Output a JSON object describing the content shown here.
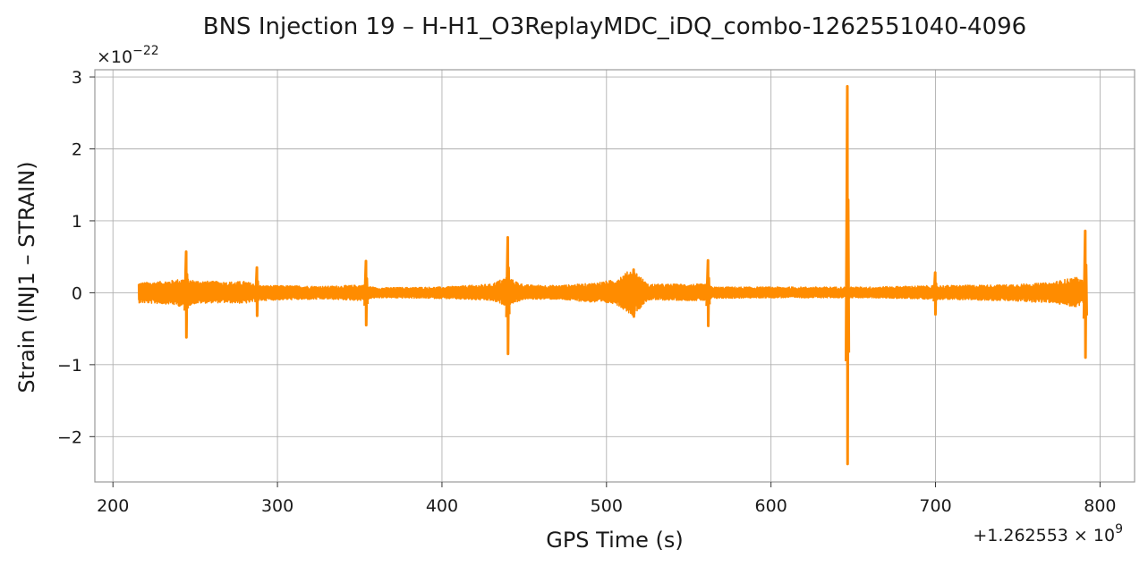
{
  "chart_data": {
    "type": "line",
    "title": "BNS Injection 19 – H-H1_O3ReplayMDC_iDQ_combo-1262551040-4096",
    "xlabel": "GPS Time (s)",
    "ylabel": "Strain (INJ1 – STRAIN)",
    "y_scale_label": {
      "base": "×10",
      "exp": "−22"
    },
    "x_offset_label": {
      "base": "+1.262553 × 10",
      "exp": "9"
    },
    "x_offset_value": 1262553000,
    "y_multiplier": 1e-22,
    "xlim": [
      189,
      821
    ],
    "ylim": [
      -2.63,
      3.1
    ],
    "x_ticks": [
      {
        "value": 200,
        "label": "200"
      },
      {
        "value": 300,
        "label": "300"
      },
      {
        "value": 400,
        "label": "400"
      },
      {
        "value": 500,
        "label": "500"
      },
      {
        "value": 600,
        "label": "600"
      },
      {
        "value": 700,
        "label": "700"
      },
      {
        "value": 800,
        "label": "800"
      }
    ],
    "y_ticks": [
      {
        "value": -2,
        "label": "−2"
      },
      {
        "value": -1,
        "label": "−1"
      },
      {
        "value": 0,
        "label": "0"
      },
      {
        "value": 1,
        "label": "1"
      },
      {
        "value": 2,
        "label": "2"
      },
      {
        "value": 3,
        "label": "3"
      }
    ],
    "grid": true,
    "line_color": "#ff8c00",
    "series": [
      {
        "x_range": [
          215.5,
          792
        ],
        "envelope": [
          {
            "x": 215.5,
            "high": 0.14,
            "low": -0.14
          },
          {
            "x": 225,
            "high": 0.15,
            "low": -0.15
          },
          {
            "x": 235,
            "high": 0.17,
            "low": -0.16
          },
          {
            "x": 243,
            "high": 0.2,
            "low": -0.2
          },
          {
            "x": 250,
            "high": 0.17,
            "low": -0.15
          },
          {
            "x": 260,
            "high": 0.16,
            "low": -0.14
          },
          {
            "x": 270,
            "high": 0.15,
            "low": -0.14
          },
          {
            "x": 280,
            "high": 0.16,
            "low": -0.15
          },
          {
            "x": 290,
            "high": 0.1,
            "low": -0.11
          },
          {
            "x": 300,
            "high": 0.1,
            "low": -0.1
          },
          {
            "x": 330,
            "high": 0.09,
            "low": -0.09
          },
          {
            "x": 352,
            "high": 0.11,
            "low": -0.11
          },
          {
            "x": 360,
            "high": 0.07,
            "low": -0.07
          },
          {
            "x": 400,
            "high": 0.08,
            "low": -0.08
          },
          {
            "x": 430,
            "high": 0.12,
            "low": -0.11
          },
          {
            "x": 439,
            "high": 0.22,
            "low": -0.18
          },
          {
            "x": 450,
            "high": 0.11,
            "low": -0.09
          },
          {
            "x": 470,
            "high": 0.1,
            "low": -0.09
          },
          {
            "x": 490,
            "high": 0.13,
            "low": -0.13
          },
          {
            "x": 505,
            "high": 0.18,
            "low": -0.15
          },
          {
            "x": 516,
            "high": 0.34,
            "low": -0.32
          },
          {
            "x": 525,
            "high": 0.12,
            "low": -0.1
          },
          {
            "x": 560,
            "high": 0.12,
            "low": -0.11
          },
          {
            "x": 565,
            "high": 0.08,
            "low": -0.08
          },
          {
            "x": 600,
            "high": 0.08,
            "low": -0.07
          },
          {
            "x": 640,
            "high": 0.08,
            "low": -0.07
          },
          {
            "x": 660,
            "high": 0.08,
            "low": -0.07
          },
          {
            "x": 700,
            "high": 0.1,
            "low": -0.09
          },
          {
            "x": 740,
            "high": 0.11,
            "low": -0.11
          },
          {
            "x": 770,
            "high": 0.14,
            "low": -0.14
          },
          {
            "x": 785,
            "high": 0.22,
            "low": -0.2
          },
          {
            "x": 792,
            "high": 0.15,
            "low": -0.13
          }
        ],
        "glitches": [
          {
            "x": 244.5,
            "high": 0.57,
            "low": -0.62
          },
          {
            "x": 287.5,
            "high": 0.35,
            "low": -0.32
          },
          {
            "x": 353.8,
            "high": 0.44,
            "low": -0.45
          },
          {
            "x": 440.0,
            "high": 0.77,
            "low": -0.85
          },
          {
            "x": 516.5,
            "high": 0.32,
            "low": -0.33
          },
          {
            "x": 561.7,
            "high": 0.45,
            "low": -0.46
          },
          {
            "x": 646.4,
            "high": 2.87,
            "low": -2.38
          },
          {
            "x": 699.8,
            "high": 0.28,
            "low": -0.3
          },
          {
            "x": 791.0,
            "high": 0.86,
            "low": -0.9
          }
        ]
      }
    ]
  }
}
